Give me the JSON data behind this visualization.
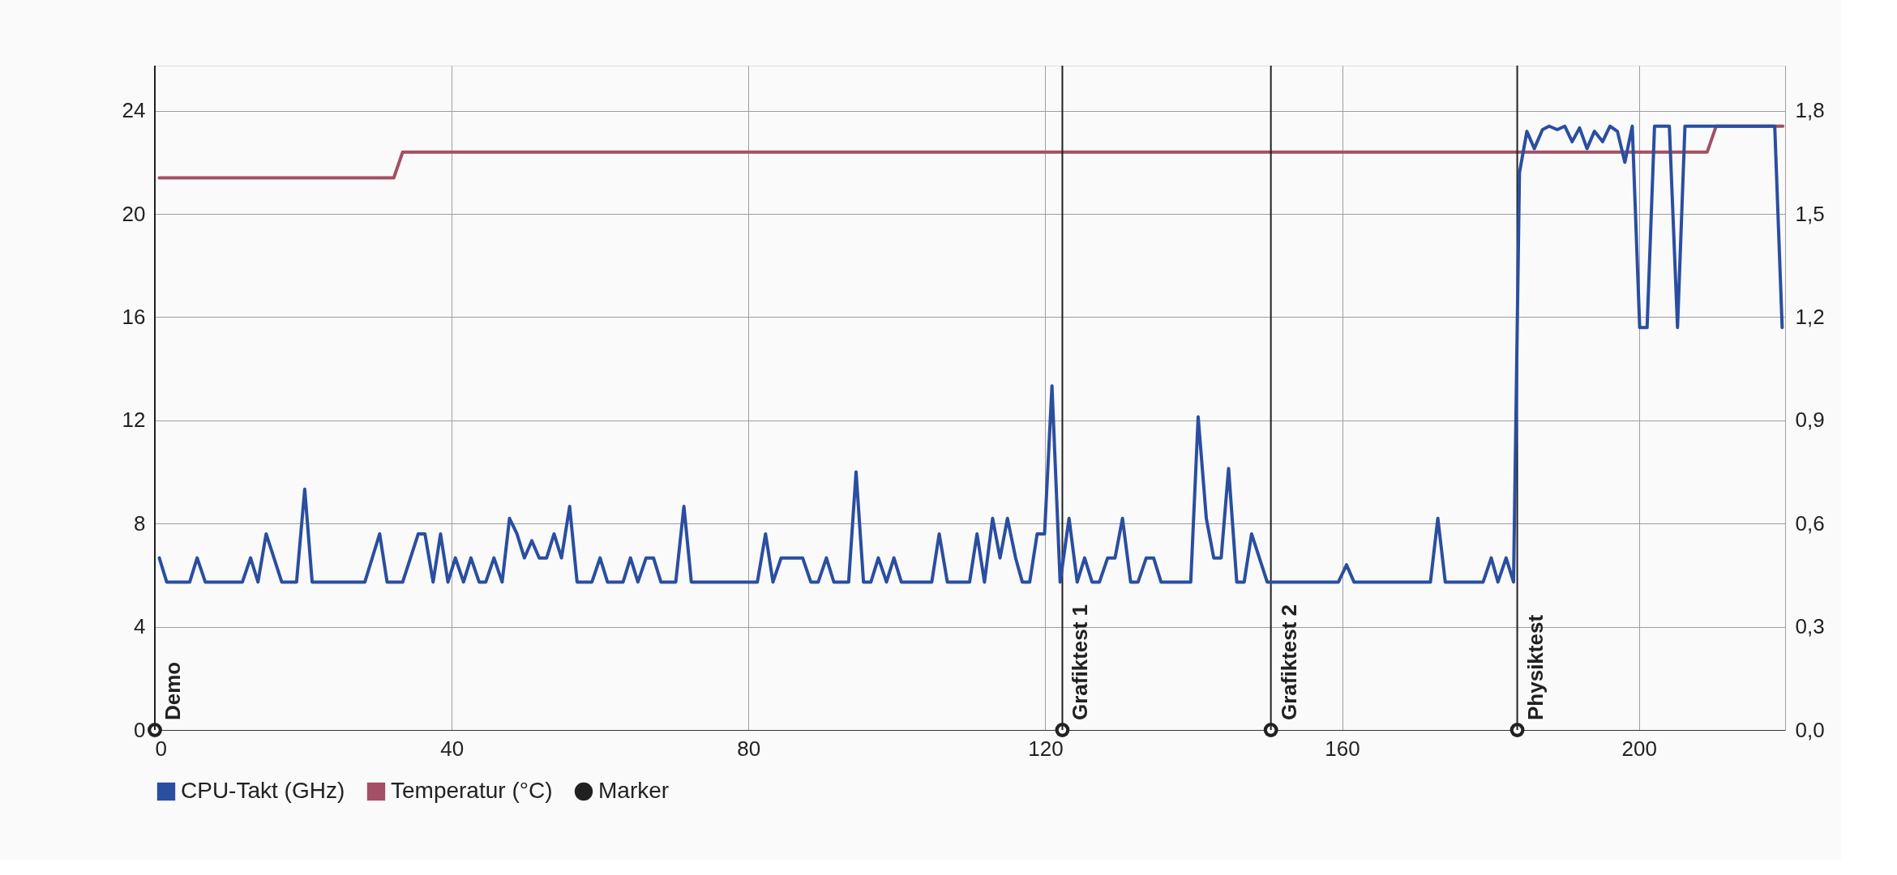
{
  "chart_data": {
    "type": "line",
    "xlim": [
      0,
      219.7
    ],
    "xticks": [
      0,
      40,
      80,
      120,
      160,
      200
    ],
    "ylim": [
      0,
      25.75
    ],
    "yticks": [
      0,
      4,
      8,
      12,
      16,
      20,
      24
    ],
    "y2lim": [
      0,
      1.931
    ],
    "y2ticks": [
      {
        "value": 0,
        "label": "0,0"
      },
      {
        "value": 0.3,
        "label": "0,3"
      },
      {
        "value": 0.6,
        "label": "0,6"
      },
      {
        "value": 0.9,
        "label": "0,9"
      },
      {
        "value": 1.2,
        "label": "1,2"
      },
      {
        "value": 1.5,
        "label": "1,5"
      },
      {
        "value": 1.8,
        "label": "1,8"
      }
    ],
    "grid": true,
    "legend": "bottom",
    "series": [
      {
        "name": "CPU-Takt (GHz)",
        "color": "#2a4ea0",
        "axis": "y2",
        "x": [
          0.6,
          1.6,
          4.7,
          5.7,
          6.8,
          11.8,
          12.9,
          13.9,
          15.0,
          17.1,
          19.1,
          20.2,
          21.2,
          28.3,
          30.3,
          31.3,
          33.4,
          35.5,
          36.4,
          37.5,
          38.5,
          39.5,
          40.5,
          41.6,
          42.6,
          43.7,
          44.6,
          45.7,
          46.8,
          47.8,
          48.8,
          49.8,
          50.8,
          51.8,
          52.8,
          53.8,
          54.8,
          55.9,
          56.9,
          58.9,
          60.0,
          61.0,
          63.1,
          64.1,
          65.1,
          66.2,
          67.2,
          68.2,
          70.2,
          71.3,
          72.3,
          81.2,
          82.3,
          83.3,
          84.4,
          87.3,
          88.4,
          89.4,
          90.5,
          91.5,
          93.5,
          94.5,
          95.5,
          96.5,
          97.5,
          98.6,
          99.6,
          100.6,
          104.7,
          105.7,
          106.8,
          109.8,
          110.8,
          111.8,
          112.9,
          113.9,
          114.9,
          116.0,
          116.9,
          117.9,
          118.9,
          119.9,
          120.9,
          122.0,
          123.2,
          124.3,
          125.3,
          126.3,
          127.3,
          128.4,
          129.4,
          130.4,
          131.5,
          132.5,
          133.6,
          134.6,
          135.6,
          139.6,
          140.6,
          141.7,
          142.7,
          143.7,
          144.7,
          145.8,
          146.8,
          147.8,
          149.9,
          159.5,
          160.6,
          161.6,
          171.9,
          172.9,
          173.9,
          179.0,
          180.1,
          181.0,
          182.1,
          183.1,
          183.9,
          184.9,
          185.9,
          187.0,
          187.9,
          189.0,
          190.0,
          191.0,
          192.0,
          193.0,
          194.0,
          195.1,
          196.1,
          197.1,
          198.1,
          199.1,
          200.1,
          201.1,
          202.1,
          204.1,
          205.2,
          206.2,
          218.3,
          219.3
        ],
        "values": [
          0.5,
          0.43,
          0.43,
          0.5,
          0.43,
          0.43,
          0.5,
          0.43,
          0.57,
          0.43,
          0.43,
          0.7,
          0.43,
          0.43,
          0.57,
          0.43,
          0.43,
          0.57,
          0.57,
          0.43,
          0.57,
          0.43,
          0.5,
          0.43,
          0.5,
          0.43,
          0.43,
          0.5,
          0.43,
          0.615,
          0.57,
          0.5,
          0.55,
          0.5,
          0.5,
          0.57,
          0.5,
          0.65,
          0.43,
          0.43,
          0.5,
          0.43,
          0.43,
          0.5,
          0.43,
          0.5,
          0.5,
          0.43,
          0.43,
          0.65,
          0.43,
          0.43,
          0.57,
          0.43,
          0.5,
          0.5,
          0.43,
          0.43,
          0.5,
          0.43,
          0.43,
          0.75,
          0.43,
          0.43,
          0.5,
          0.43,
          0.5,
          0.43,
          0.43,
          0.57,
          0.43,
          0.43,
          0.57,
          0.43,
          0.615,
          0.5,
          0.615,
          0.5,
          0.43,
          0.43,
          0.57,
          0.57,
          1.0,
          0.43,
          0.615,
          0.43,
          0.5,
          0.43,
          0.43,
          0.5,
          0.5,
          0.615,
          0.43,
          0.43,
          0.5,
          0.5,
          0.43,
          0.43,
          0.91,
          0.615,
          0.5,
          0.5,
          0.76,
          0.43,
          0.43,
          0.57,
          0.43,
          0.43,
          0.48,
          0.43,
          0.43,
          0.615,
          0.43,
          0.43,
          0.5,
          0.43,
          0.5,
          0.43,
          1.62,
          1.74,
          1.69,
          1.745,
          1.755,
          1.745,
          1.755,
          1.71,
          1.75,
          1.69,
          1.74,
          1.71,
          1.755,
          1.74,
          1.65,
          1.755,
          1.17,
          1.17,
          1.755,
          1.755,
          1.17,
          1.755,
          1.755,
          1.17
        ]
      },
      {
        "name": "Temperatur (°C)",
        "color": "#a35064",
        "x": [
          0.6,
          32.2,
          33.4,
          209.2,
          210.4,
          219.4
        ],
        "values": [
          21.4,
          21.4,
          22.4,
          22.4,
          23.4,
          23.4
        ]
      },
      {
        "name": "Marker",
        "type": "scatter",
        "marker": "circle",
        "color": "#212121",
        "x": [
          0,
          122.3,
          150.4,
          183.6
        ],
        "values": [
          0,
          0,
          0,
          0
        ]
      }
    ],
    "ref_lines": [
      {
        "axis": "x",
        "value": 0,
        "label": "Demo",
        "color": "#212121"
      },
      {
        "axis": "x",
        "value": 122.3,
        "label": "Grafiktest 1",
        "color": "#212121"
      },
      {
        "axis": "x",
        "value": 150.4,
        "label": "Grafiktest 2",
        "color": "#212121"
      },
      {
        "axis": "x",
        "value": 183.6,
        "label": "Physiktest",
        "color": "#212121"
      }
    ]
  }
}
